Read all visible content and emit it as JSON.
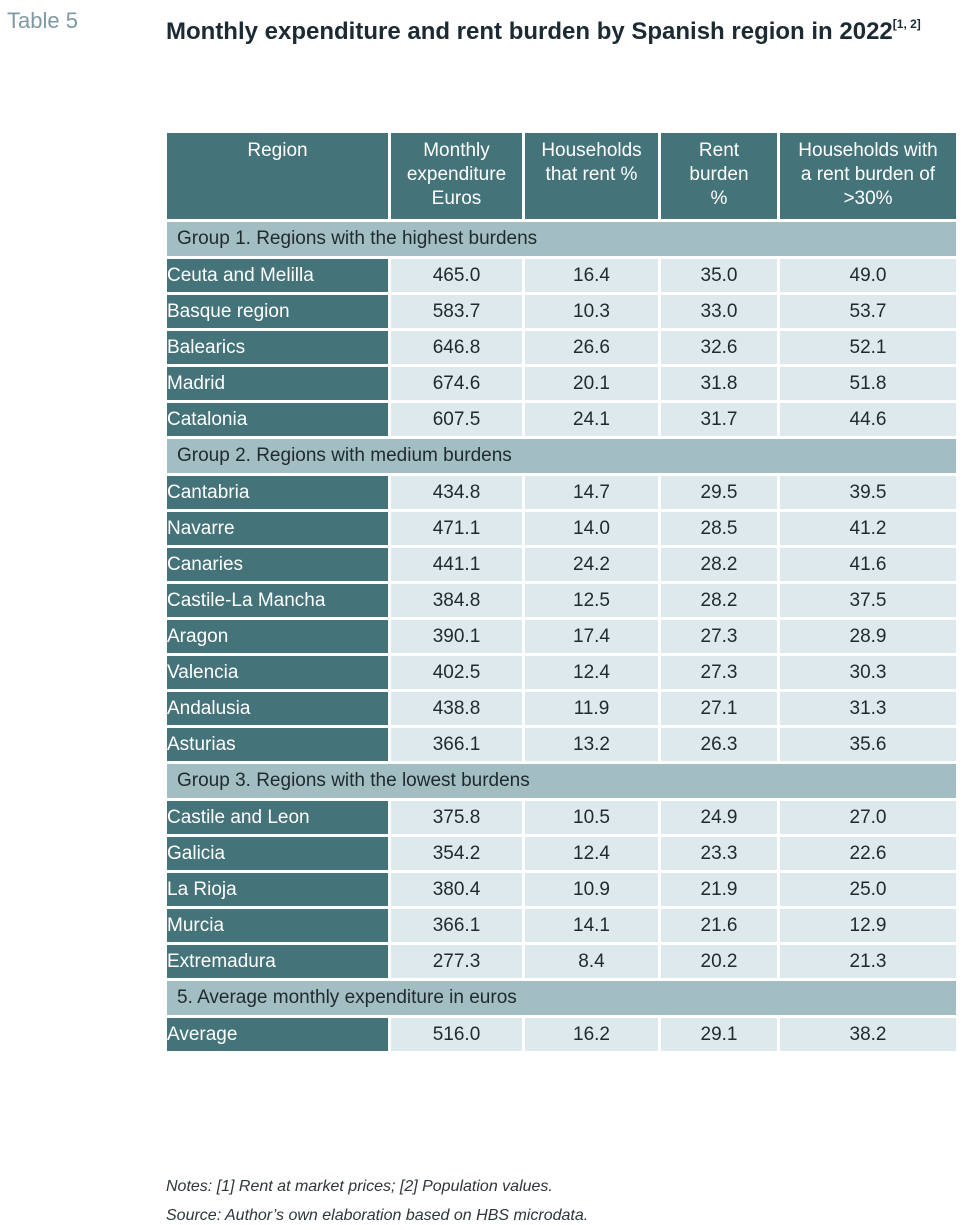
{
  "label": "Table 5",
  "title": "Monthly expenditure and rent burden by Spanish region in 2022",
  "title_sup": "[1, 2]",
  "headers": [
    [
      "Region"
    ],
    [
      "Monthly",
      "expenditure",
      "Euros"
    ],
    [
      "Households",
      "that rent %"
    ],
    [
      "Rent",
      "burden",
      "%"
    ],
    [
      "Households with",
      "a rent burden of",
      ">30%"
    ]
  ],
  "groups": [
    {
      "title": "Group 1. Regions with the highest burdens",
      "rows": [
        [
          "Ceuta and Melilla",
          "465.0",
          "16.4",
          "35.0",
          "49.0"
        ],
        [
          "Basque region",
          "583.7",
          "10.3",
          "33.0",
          "53.7"
        ],
        [
          "Balearics",
          "646.8",
          "26.6",
          "32.6",
          "52.1"
        ],
        [
          "Madrid",
          "674.6",
          "20.1",
          "31.8",
          "51.8"
        ],
        [
          "Catalonia",
          "607.5",
          "24.1",
          "31.7",
          "44.6"
        ]
      ]
    },
    {
      "title": "Group 2. Regions with medium burdens",
      "rows": [
        [
          "Cantabria",
          "434.8",
          "14.7",
          "29.5",
          "39.5"
        ],
        [
          "Navarre",
          "471.1",
          "14.0",
          "28.5",
          "41.2"
        ],
        [
          "Canaries",
          "441.1",
          "24.2",
          "28.2",
          "41.6"
        ],
        [
          "Castile-La Mancha",
          "384.8",
          "12.5",
          "28.2",
          "37.5"
        ],
        [
          "Aragon",
          "390.1",
          "17.4",
          "27.3",
          "28.9"
        ],
        [
          "Valencia",
          "402.5",
          "12.4",
          "27.3",
          "30.3"
        ],
        [
          "Andalusia",
          "438.8",
          "11.9",
          "27.1",
          "31.3"
        ],
        [
          "Asturias",
          "366.1",
          "13.2",
          "26.3",
          "35.6"
        ]
      ]
    },
    {
      "title": "Group 3. Regions with the lowest burdens",
      "rows": [
        [
          "Castile and Leon",
          "375.8",
          "10.5",
          "24.9",
          "27.0"
        ],
        [
          "Galicia",
          "354.2",
          "12.4",
          "23.3",
          "22.6"
        ],
        [
          "La Rioja",
          "380.4",
          "10.9",
          "21.9",
          "25.0"
        ],
        [
          "Murcia",
          "366.1",
          "14.1",
          "21.6",
          "12.9"
        ],
        [
          "Extremadura",
          "277.3",
          "8.4",
          "20.2",
          "21.3"
        ]
      ]
    },
    {
      "title": "5. Average monthly expenditure in euros",
      "rows": [
        [
          "Average",
          "516.0",
          "16.2",
          "29.1",
          "38.2"
        ]
      ]
    }
  ],
  "notes": "Notes: [1] Rent at market prices; [2] Population values.",
  "source": "Source: Author’s own elaboration based on HBS microdata."
}
